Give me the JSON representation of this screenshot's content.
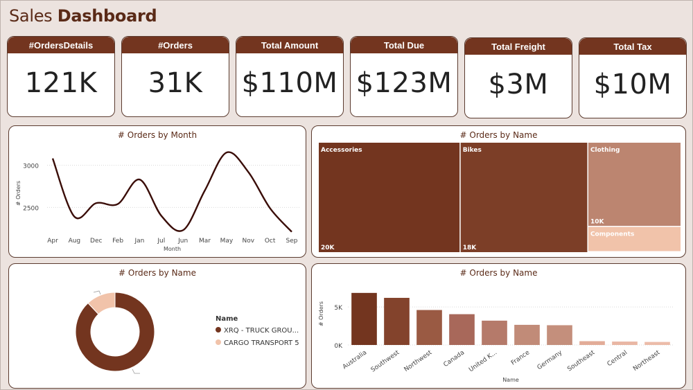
{
  "header": {
    "title_prefix": "Sales",
    "title_bold": "Dashboard"
  },
  "kpis": [
    {
      "label": "#OrdersDetails",
      "value": "121K"
    },
    {
      "label": "#Orders",
      "value": "31K"
    },
    {
      "label": "Total Amount",
      "value": "$110M"
    },
    {
      "label": "Total Due",
      "value": "$123M"
    },
    {
      "label": "Total Freight",
      "value": "$3M"
    },
    {
      "label": "Total Tax",
      "value": "$10M"
    }
  ],
  "colors": {
    "dark_brown": "#73351f",
    "treemap_dark": "#73351f",
    "treemap_mid": "#7c3e27",
    "treemap_light": "#bc8570",
    "treemap_pale": "#f1c3aa",
    "line": "#3a0d08",
    "donut_dark": "#73351f",
    "donut_light": "#f1c3aa"
  },
  "chart_data": [
    {
      "id": "line",
      "type": "line",
      "title": "# Orders by Month",
      "xlabel": "Month",
      "ylabel": "# Orders",
      "categories": [
        "Apr",
        "Aug",
        "Dec",
        "Feb",
        "Jan",
        "Jul",
        "Jun",
        "Mar",
        "May",
        "Nov",
        "Oct",
        "Sep"
      ],
      "values": [
        3080,
        2390,
        2550,
        2540,
        2830,
        2400,
        2230,
        2700,
        3150,
        2920,
        2490,
        2210
      ],
      "ylim": [
        2150,
        3250
      ],
      "yticks": [
        2500,
        3000
      ],
      "grid": true
    },
    {
      "id": "treemap",
      "type": "treemap",
      "title": "# Orders by Name",
      "items": [
        {
          "name": "Accessories",
          "value": 20000,
          "label": "20K"
        },
        {
          "name": "Bikes",
          "value": 18000,
          "label": "18K"
        },
        {
          "name": "Clothing",
          "value": 10000,
          "label": "10K"
        },
        {
          "name": "Components",
          "value": 3000,
          "label": ""
        }
      ]
    },
    {
      "id": "donut",
      "type": "pie",
      "title": "# Orders by Name",
      "legend_title": "Name",
      "labels": [
        "XRQ - TRUCK GROU...",
        "CARGO TRANSPORT 5"
      ],
      "values": [
        88,
        12
      ]
    },
    {
      "id": "bar",
      "type": "bar",
      "title": "# Orders by Name",
      "xlabel": "Name",
      "ylabel": "# Orders",
      "categories": [
        "Australia",
        "Southwest",
        "Northwest",
        "Canada",
        "United K...",
        "France",
        "Germany",
        "Southeast",
        "Central",
        "Northeast"
      ],
      "values": [
        6850,
        6200,
        4600,
        4050,
        3200,
        2650,
        2600,
        500,
        450,
        400
      ],
      "ylim": [
        0,
        7200
      ],
      "yticks": [
        {
          "v": 0,
          "label": "0K"
        },
        {
          "v": 5000,
          "label": "5K"
        }
      ],
      "grid": true
    }
  ]
}
